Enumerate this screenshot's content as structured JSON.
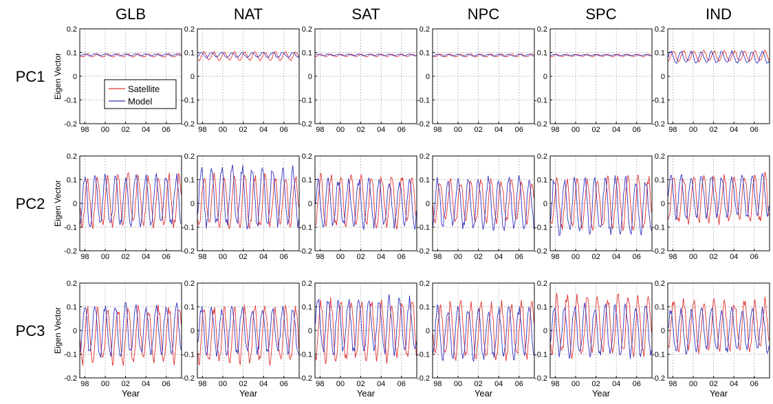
{
  "figure": {
    "row_labels": [
      "PC1",
      "PC2",
      "PC3"
    ],
    "col_labels": [
      "GLB",
      "NAT",
      "SAT",
      "NPC",
      "SPC",
      "IND"
    ],
    "ylabel": "Eigen Vector",
    "xlabel": "Year",
    "x_ticks": [
      "98",
      "00",
      "02",
      "04",
      "06"
    ],
    "y_ticks": [
      "0.2",
      "0.1",
      "0",
      "-0.1",
      "-0.2"
    ],
    "legend": [
      "Satellite",
      "Model"
    ],
    "colors": {
      "Satellite": "#e03030",
      "Model": "#3030c0",
      "grid": "#888888"
    }
  },
  "chart_data": {
    "type": "line",
    "layout": "3 rows (PC1, PC2, PC3) x 6 columns (GLB, NAT, SAT, NPC, SPC, IND)",
    "x_range": [
      1997.5,
      2007.5
    ],
    "ylim": [
      -0.2,
      0.2
    ],
    "x_tick_values": [
      1998,
      2000,
      2002,
      2004,
      2006
    ],
    "y_tick_values": [
      0.2,
      0.1,
      0,
      -0.1,
      -0.2
    ],
    "grid": "dotted",
    "legend_location": "lower-left of GLB PC1 panel",
    "series_names": [
      "Satellite",
      "Model"
    ],
    "panels": [
      {
        "row": "PC1",
        "region": "GLB",
        "series": [
          {
            "name": "Satellite",
            "mean": 0.088,
            "amplitude": 0.008
          },
          {
            "name": "Model",
            "mean": 0.09,
            "amplitude": 0.005
          }
        ]
      },
      {
        "row": "PC1",
        "region": "NAT",
        "series": [
          {
            "name": "Satellite",
            "mean": 0.085,
            "amplitude": 0.02
          },
          {
            "name": "Model",
            "mean": 0.09,
            "amplitude": 0.012
          }
        ]
      },
      {
        "row": "PC1",
        "region": "SAT",
        "series": [
          {
            "name": "Satellite",
            "mean": 0.088,
            "amplitude": 0.006
          },
          {
            "name": "Model",
            "mean": 0.09,
            "amplitude": 0.004
          }
        ]
      },
      {
        "row": "PC1",
        "region": "NPC",
        "series": [
          {
            "name": "Satellite",
            "mean": 0.088,
            "amplitude": 0.007
          },
          {
            "name": "Model",
            "mean": 0.089,
            "amplitude": 0.005
          }
        ]
      },
      {
        "row": "PC1",
        "region": "SPC",
        "series": [
          {
            "name": "Satellite",
            "mean": 0.088,
            "amplitude": 0.006
          },
          {
            "name": "Model",
            "mean": 0.089,
            "amplitude": 0.003
          }
        ]
      },
      {
        "row": "PC1",
        "region": "IND",
        "series": [
          {
            "name": "Satellite",
            "mean": 0.085,
            "amplitude": 0.025
          },
          {
            "name": "Model",
            "mean": 0.08,
            "amplitude": 0.028
          }
        ]
      },
      {
        "row": "PC2",
        "region": "GLB",
        "series": [
          {
            "name": "Satellite",
            "mean": 0.01,
            "amplitude": 0.12
          },
          {
            "name": "Model",
            "mean": 0.01,
            "amplitude": 0.12
          }
        ]
      },
      {
        "row": "PC2",
        "region": "NAT",
        "series": [
          {
            "name": "Satellite",
            "mean": 0.01,
            "amplitude": 0.12
          },
          {
            "name": "Model",
            "mean": 0.03,
            "amplitude": 0.14
          }
        ]
      },
      {
        "row": "PC2",
        "region": "SAT",
        "series": [
          {
            "name": "Satellite",
            "mean": 0.01,
            "amplitude": 0.12
          },
          {
            "name": "Model",
            "mean": 0.0,
            "amplitude": 0.11
          }
        ]
      },
      {
        "row": "PC2",
        "region": "NPC",
        "series": [
          {
            "name": "Satellite",
            "mean": 0.01,
            "amplitude": 0.1
          },
          {
            "name": "Model",
            "mean": 0.0,
            "amplitude": 0.12
          }
        ]
      },
      {
        "row": "PC2",
        "region": "SPC",
        "series": [
          {
            "name": "Satellite",
            "mean": 0.0,
            "amplitude": 0.12
          },
          {
            "name": "Model",
            "mean": -0.01,
            "amplitude": 0.13
          }
        ]
      },
      {
        "row": "PC2",
        "region": "IND",
        "series": [
          {
            "name": "Satellite",
            "mean": 0.02,
            "amplitude": 0.11
          },
          {
            "name": "Model",
            "mean": 0.03,
            "amplitude": 0.1
          }
        ]
      },
      {
        "row": "PC3",
        "region": "GLB",
        "series": [
          {
            "name": "Satellite",
            "mean": -0.02,
            "amplitude": 0.13
          },
          {
            "name": "Model",
            "mean": 0.0,
            "amplitude": 0.12
          }
        ]
      },
      {
        "row": "PC3",
        "region": "NAT",
        "series": [
          {
            "name": "Satellite",
            "mean": -0.02,
            "amplitude": 0.13
          },
          {
            "name": "Model",
            "mean": 0.0,
            "amplitude": 0.11
          }
        ]
      },
      {
        "row": "PC3",
        "region": "SAT",
        "series": [
          {
            "name": "Satellite",
            "mean": 0.0,
            "amplitude": 0.14
          },
          {
            "name": "Model",
            "mean": 0.02,
            "amplitude": 0.13
          }
        ]
      },
      {
        "row": "PC3",
        "region": "NPC",
        "series": [
          {
            "name": "Satellite",
            "mean": 0.0,
            "amplitude": 0.13
          },
          {
            "name": "Model",
            "mean": -0.01,
            "amplitude": 0.12
          }
        ]
      },
      {
        "row": "PC3",
        "region": "SPC",
        "series": [
          {
            "name": "Satellite",
            "mean": 0.02,
            "amplitude": 0.14
          },
          {
            "name": "Model",
            "mean": 0.0,
            "amplitude": 0.12
          }
        ]
      },
      {
        "row": "PC3",
        "region": "IND",
        "series": [
          {
            "name": "Satellite",
            "mean": 0.02,
            "amplitude": 0.12
          },
          {
            "name": "Model",
            "mean": 0.0,
            "amplitude": 0.1
          }
        ]
      }
    ]
  }
}
